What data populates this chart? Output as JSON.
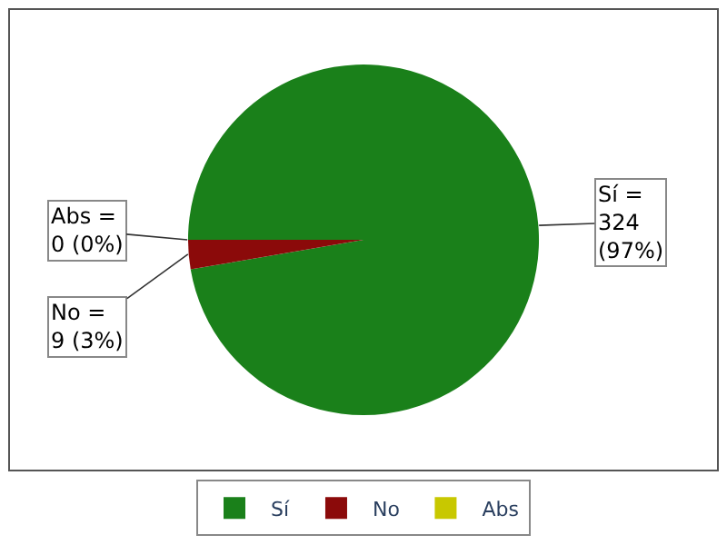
{
  "chart_data": {
    "type": "pie",
    "categories": [
      "Sí",
      "No",
      "Abs"
    ],
    "values": [
      324,
      9,
      0
    ],
    "colors": [
      "#1a801a",
      "#8b0a0a",
      "#c8c800"
    ],
    "value_labels": [
      "Sí =\n324\n(97%)",
      "No =\n9 (3%)",
      "Abs =\n0 (0%)"
    ],
    "legend": "bottom"
  }
}
